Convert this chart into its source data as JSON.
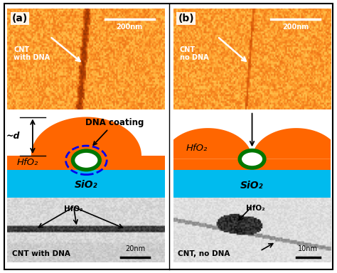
{
  "fig_width": 4.74,
  "fig_height": 3.84,
  "bg_color": "#ffffff",
  "orange_color": "#FF6600",
  "cyan_color": "#00BBEE",
  "green_color": "#007700",
  "blue_dna_color": "#0000EE",
  "panel_a_label": "(a)",
  "panel_b_label": "(b)",
  "label_afm_a": "CNT\nwith DNA",
  "label_afm_b": "CNT\nno DNA",
  "scale_afm": "200nm",
  "label_hfo2_a": "HfO₂",
  "label_sio2_a": "SiO₂",
  "label_hfo2_b": "HfO₂",
  "label_sio2_b": "SiO₂",
  "label_dna_coating": "DNA coating",
  "label_d": "~d",
  "label_tem_a": "CNT with DNA",
  "label_tem_b": "CNT, no DNA",
  "scale_tem_a": "20nm",
  "scale_tem_b": "10nm",
  "label_tem_hfo2_a": "HfO₂",
  "label_tem_hfo2_b": "HfO₂"
}
